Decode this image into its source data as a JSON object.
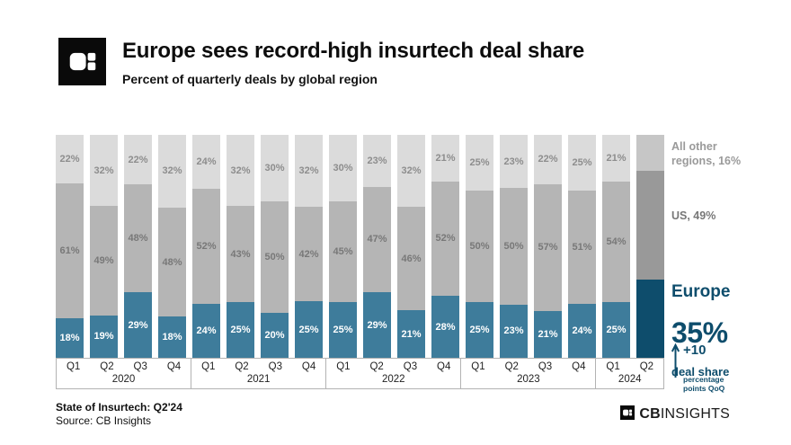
{
  "header": {
    "title": "Europe sees record-high insurtech deal share",
    "subtitle": "Percent of quarterly deals by global region"
  },
  "chart_data": {
    "type": "bar",
    "stacked": true,
    "unit": "%",
    "ylim": [
      0,
      100
    ],
    "title": "Europe sees record-high insurtech deal share",
    "subtitle": "Percent of quarterly deals by global region",
    "year_groups": [
      {
        "year": "2020",
        "quarters": [
          "Q1",
          "Q2",
          "Q3",
          "Q4"
        ]
      },
      {
        "year": "2021",
        "quarters": [
          "Q1",
          "Q2",
          "Q3",
          "Q4"
        ]
      },
      {
        "year": "2022",
        "quarters": [
          "Q1",
          "Q2",
          "Q3",
          "Q4"
        ]
      },
      {
        "year": "2023",
        "quarters": [
          "Q1",
          "Q2",
          "Q3",
          "Q4"
        ]
      },
      {
        "year": "2024",
        "quarters": [
          "Q1",
          "Q2"
        ]
      }
    ],
    "series": [
      {
        "name": "Europe",
        "color": "#3E7C9B",
        "highlight_color": "#0E4D6C",
        "values": [
          18,
          19,
          29,
          18,
          24,
          25,
          20,
          25,
          25,
          29,
          21,
          28,
          25,
          23,
          21,
          24,
          25,
          35
        ]
      },
      {
        "name": "US",
        "color": "#B5B5B5",
        "highlight_color": "#999999",
        "values": [
          61,
          49,
          48,
          48,
          52,
          43,
          50,
          42,
          45,
          47,
          46,
          52,
          50,
          50,
          57,
          51,
          54,
          49
        ]
      },
      {
        "name": "All other regions",
        "color": "#DBDBDB",
        "highlight_color": "#C6C6C6",
        "values": [
          22,
          32,
          22,
          32,
          24,
          32,
          30,
          32,
          30,
          23,
          32,
          21,
          25,
          23,
          22,
          25,
          21,
          16
        ]
      }
    ],
    "label_colors": {
      "Europe": "#FFFFFF",
      "US": "#787878",
      "All other regions": "#8D8D8D"
    },
    "highlight_index": 17,
    "hide_labels_on_highlight": true,
    "legend_position": "right",
    "grid": false
  },
  "annotations": {
    "all_other": "All other\nregions, 16%",
    "us": "US, 49%",
    "europe_label": "Europe",
    "europe_value": "35%",
    "europe_caption": "deal share",
    "qoq_delta": "+10",
    "qoq_caption": "percentage\npoints QoQ"
  },
  "footer": {
    "report": "State of Insurtech: Q2'24",
    "source": "Source: CB Insights",
    "logo_cb": "CB",
    "logo_insights": "INSIGHTS"
  },
  "colors": {
    "accent_teal": "#3E7C9B",
    "accent_dark_teal": "#0E4D6C",
    "us_gray": "#B5B5B5",
    "other_gray": "#DBDBDB",
    "axis_border": "#B3B3B3"
  }
}
